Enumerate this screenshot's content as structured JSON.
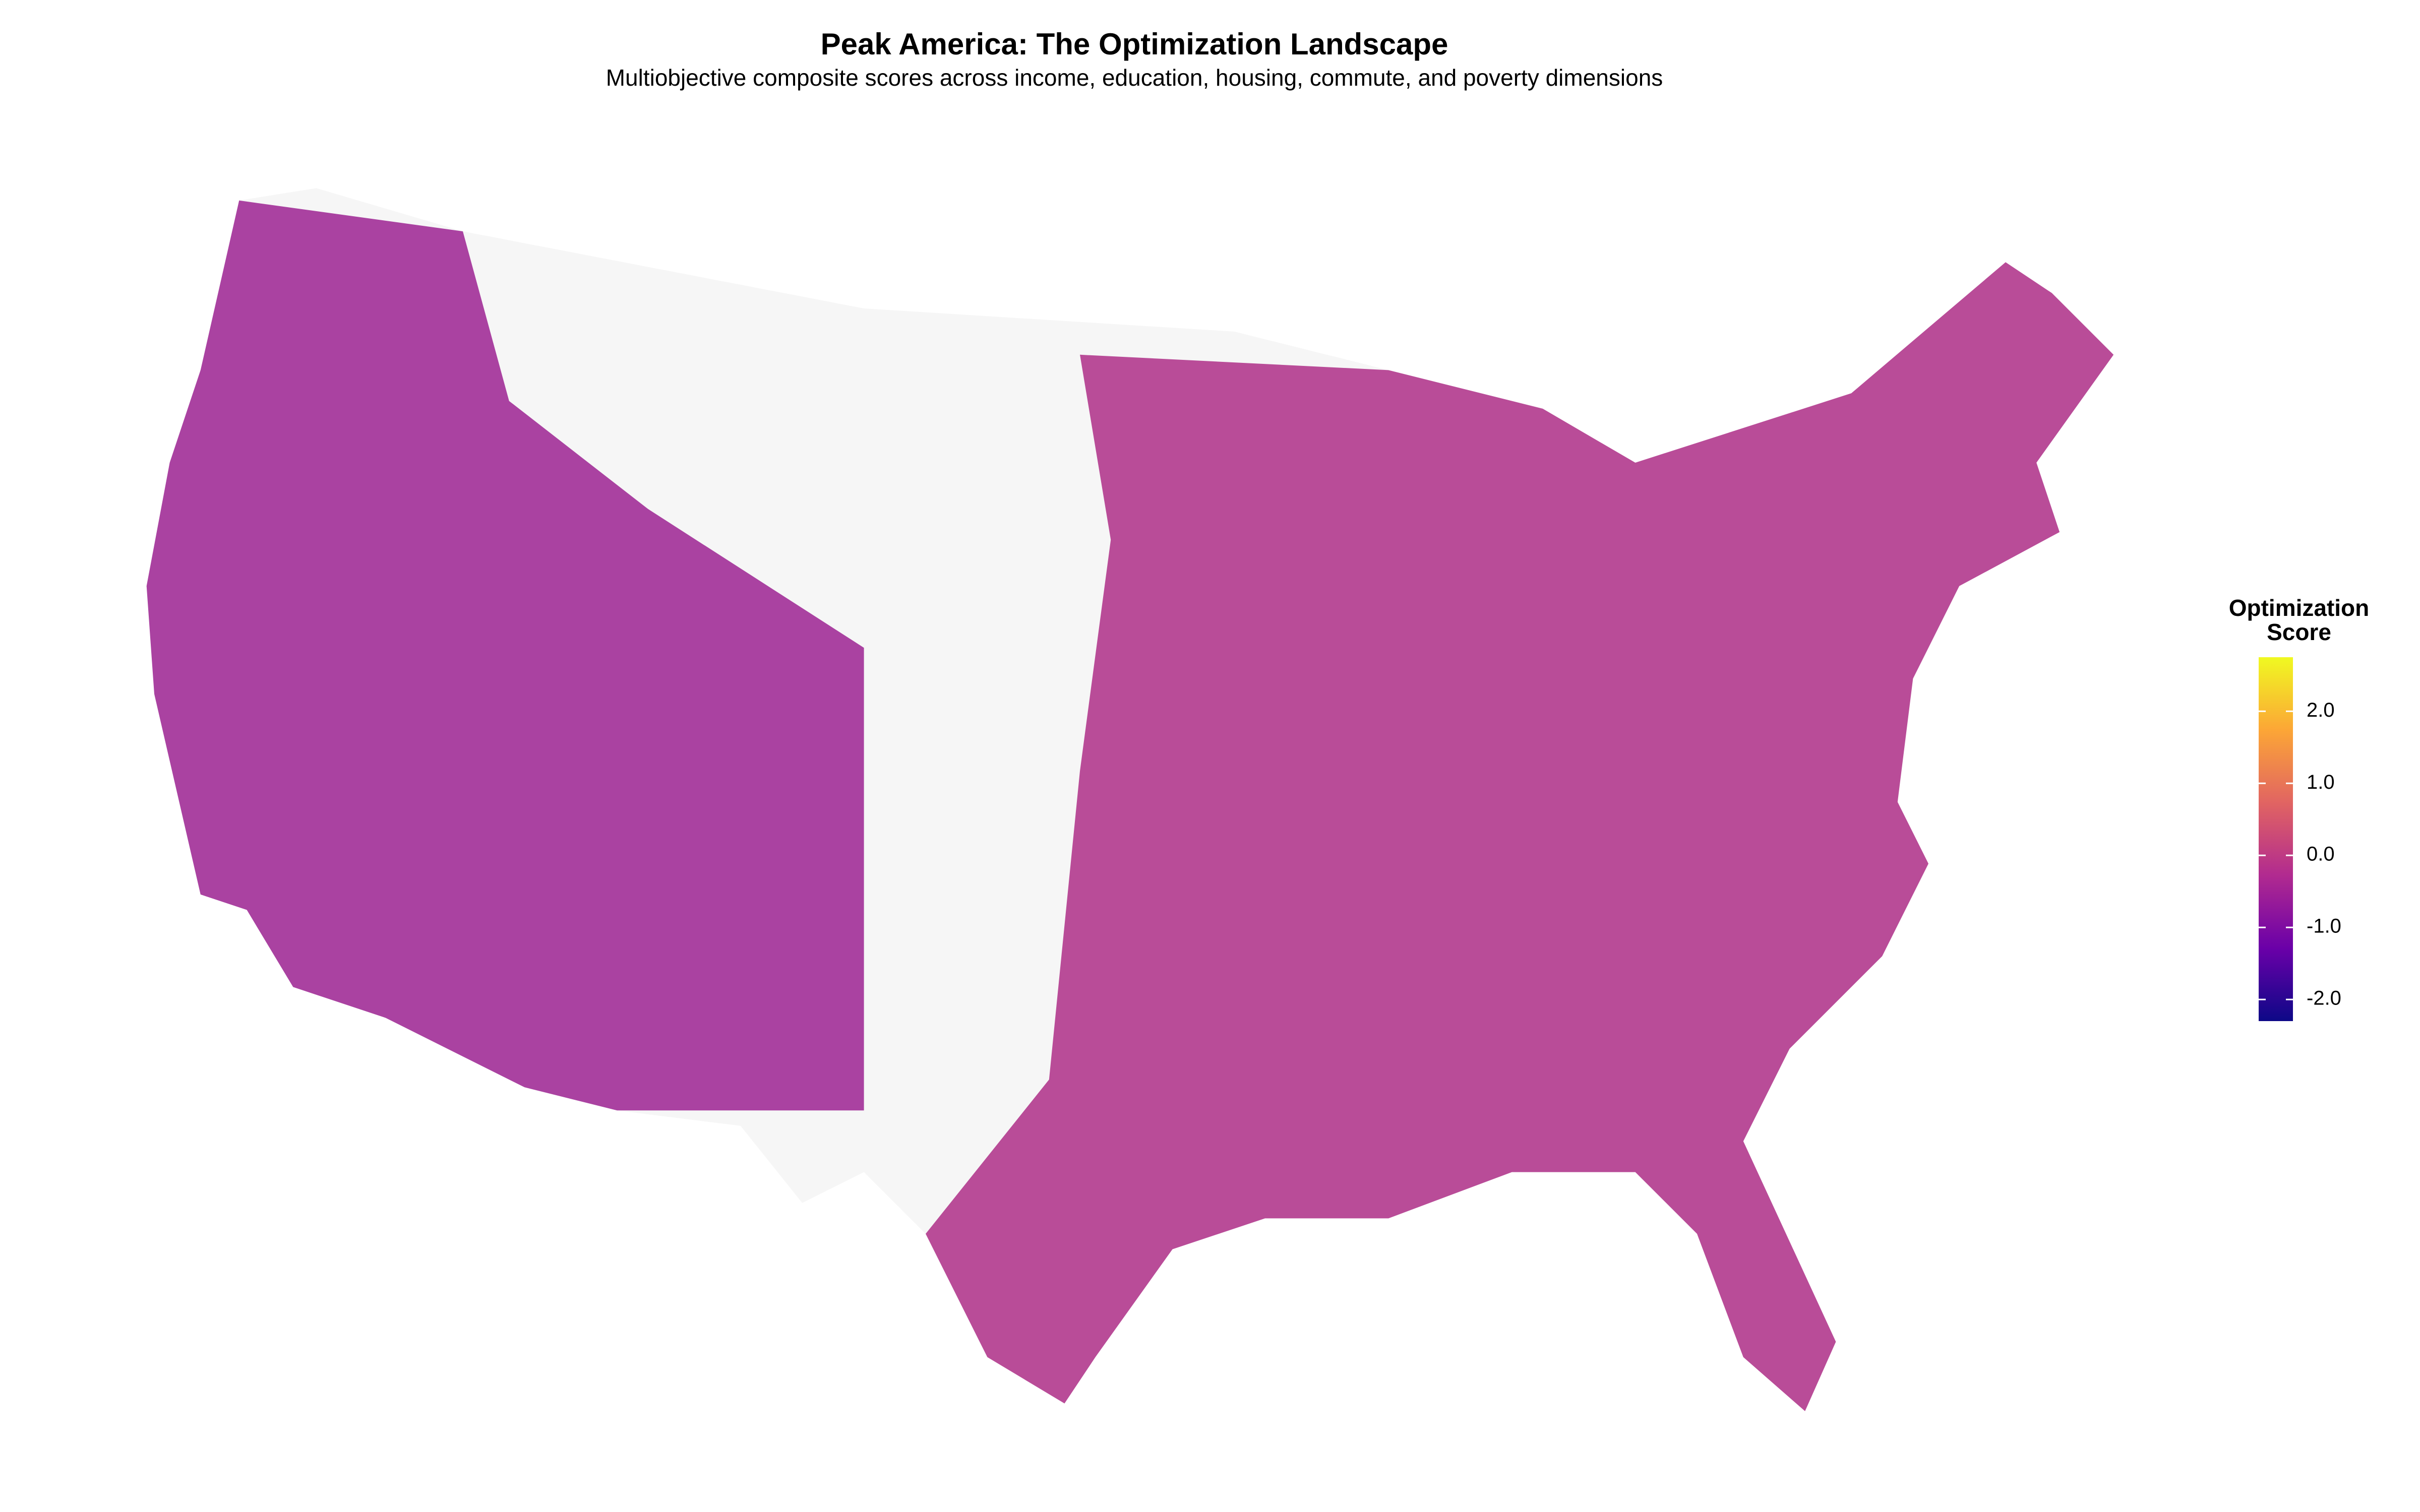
{
  "chart_data": {
    "type": "choropleth",
    "title": "Peak America: The Optimization Landscape",
    "subtitle": "Multiobjective composite scores across income, education, housing, commute, and poverty dimensions",
    "legend": {
      "title": [
        "Optimization",
        "Score"
      ]
    },
    "colorscale": [
      "#0d0887",
      "#6a00a8",
      "#b12a90",
      "#e16462",
      "#fca636",
      "#f0f921"
    ],
    "clim": [
      -2.3,
      2.75
    ],
    "cticks": [
      {
        "value": -2,
        "label": "-2.0"
      },
      {
        "value": -1,
        "label": "-1.0"
      },
      {
        "value": 0,
        "label": "0.0"
      },
      {
        "value": 1,
        "label": "1.0"
      },
      {
        "value": 2,
        "label": "2.0"
      }
    ]
  }
}
